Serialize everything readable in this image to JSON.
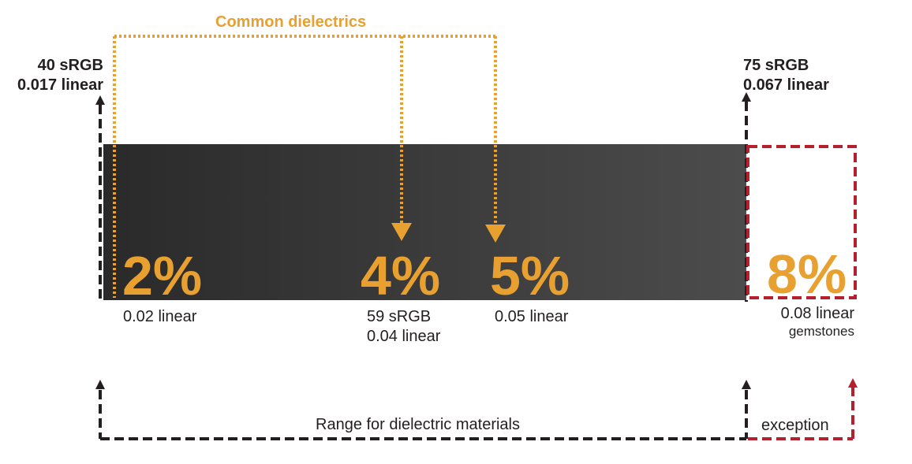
{
  "title": "Common dielectrics",
  "left_bound": {
    "srgb": "40 sRGB",
    "linear": "0.017 linear"
  },
  "right_bound": {
    "srgb": "75 sRGB",
    "linear": "0.067 linear"
  },
  "markers": {
    "m2": {
      "percent": "2%",
      "linear": "0.02 linear"
    },
    "m4": {
      "percent": "4%",
      "srgb": "59 sRGB",
      "linear": "0.04 linear"
    },
    "m5": {
      "percent": "5%",
      "linear": "0.05 linear"
    },
    "m8": {
      "percent": "8%",
      "linear": "0.08 linear",
      "note": "gemstones"
    }
  },
  "range_label": "Range for dielectric materials",
  "exception_label": "exception",
  "colors": {
    "orange": "#e8a030",
    "dark": "#231f20",
    "red": "#b5202e",
    "gradient_start": "#2a2a2a",
    "gradient_end": "#4a4a4a"
  }
}
